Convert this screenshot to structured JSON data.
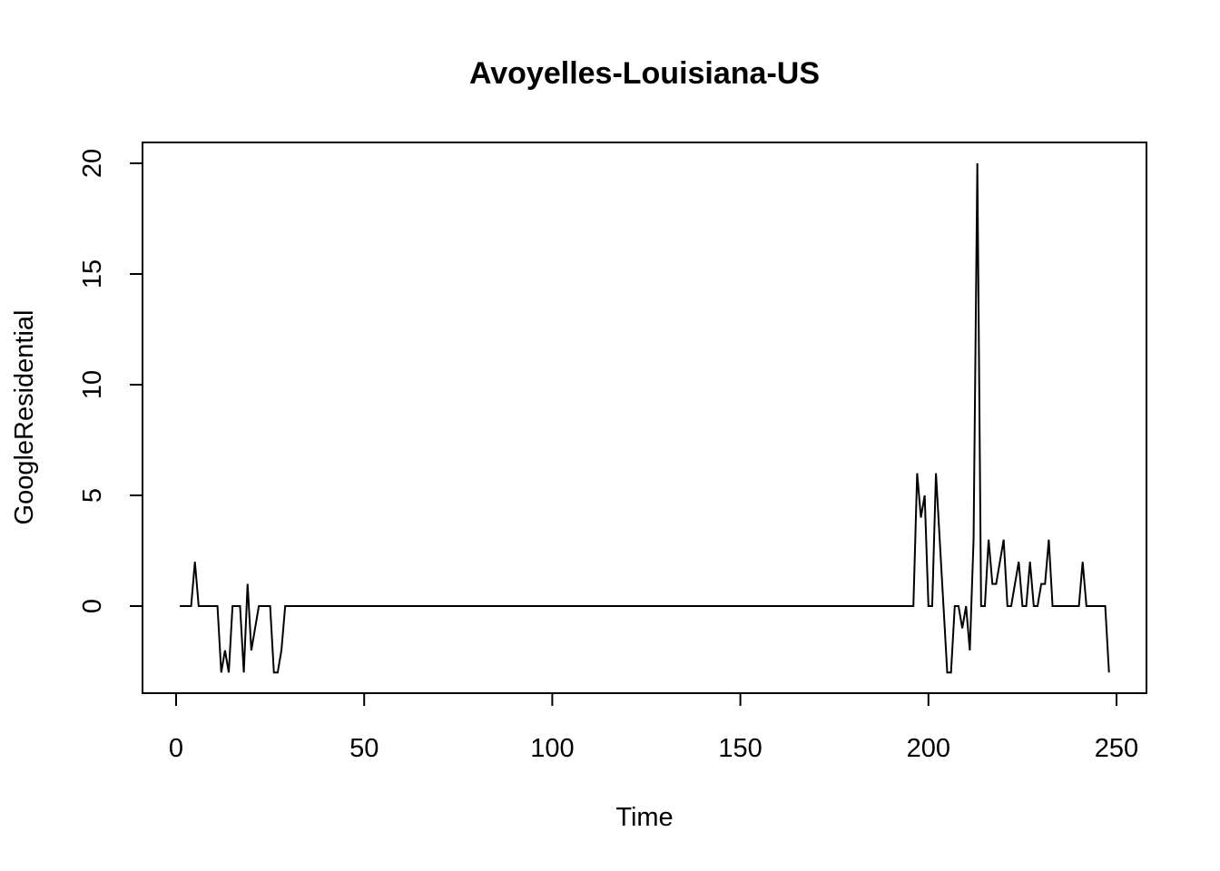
{
  "chart_data": {
    "type": "line",
    "title": "Avoyelles-Louisiana-US",
    "xlabel": "Time",
    "ylabel": "GoogleResidential",
    "xlim": [
      0,
      250
    ],
    "ylim": [
      -3,
      20
    ],
    "x_ticks": [
      0,
      50,
      100,
      150,
      200,
      250
    ],
    "y_ticks": [
      0,
      5,
      10,
      15,
      20
    ],
    "grid": false,
    "series": [
      {
        "color": "#000000",
        "points": [
          [
            1,
            0
          ],
          [
            2,
            0
          ],
          [
            3,
            0
          ],
          [
            4,
            0
          ],
          [
            5,
            2
          ],
          [
            6,
            0
          ],
          [
            7,
            0
          ],
          [
            8,
            0
          ],
          [
            9,
            0
          ],
          [
            10,
            0
          ],
          [
            11,
            0
          ],
          [
            12,
            -3
          ],
          [
            13,
            -2
          ],
          [
            14,
            -3
          ],
          [
            15,
            0
          ],
          [
            16,
            0
          ],
          [
            17,
            0
          ],
          [
            18,
            -3
          ],
          [
            19,
            1
          ],
          [
            20,
            -2
          ],
          [
            21,
            -1
          ],
          [
            22,
            0
          ],
          [
            23,
            0
          ],
          [
            24,
            0
          ],
          [
            25,
            0
          ],
          [
            26,
            -3
          ],
          [
            27,
            -3
          ],
          [
            28,
            -2
          ],
          [
            29,
            0
          ],
          [
            30,
            0
          ],
          [
            40,
            0
          ],
          [
            60,
            0
          ],
          [
            80,
            0
          ],
          [
            100,
            0
          ],
          [
            120,
            0
          ],
          [
            140,
            0
          ],
          [
            160,
            0
          ],
          [
            180,
            0
          ],
          [
            196,
            0
          ],
          [
            197,
            6
          ],
          [
            198,
            4
          ],
          [
            199,
            5
          ],
          [
            200,
            0
          ],
          [
            201,
            0
          ],
          [
            202,
            6
          ],
          [
            203,
            3
          ],
          [
            204,
            0
          ],
          [
            205,
            -3
          ],
          [
            206,
            -3
          ],
          [
            207,
            0
          ],
          [
            208,
            0
          ],
          [
            209,
            -1
          ],
          [
            210,
            0
          ],
          [
            211,
            -2
          ],
          [
            212,
            3
          ],
          [
            213,
            20
          ],
          [
            214,
            0
          ],
          [
            215,
            0
          ],
          [
            216,
            3
          ],
          [
            217,
            1
          ],
          [
            218,
            1
          ],
          [
            219,
            2
          ],
          [
            220,
            3
          ],
          [
            221,
            0
          ],
          [
            222,
            0
          ],
          [
            223,
            1
          ],
          [
            224,
            2
          ],
          [
            225,
            0
          ],
          [
            226,
            0
          ],
          [
            227,
            2
          ],
          [
            228,
            0
          ],
          [
            229,
            0
          ],
          [
            230,
            1
          ],
          [
            231,
            1
          ],
          [
            232,
            3
          ],
          [
            233,
            0
          ],
          [
            234,
            0
          ],
          [
            235,
            0
          ],
          [
            236,
            0
          ],
          [
            237,
            0
          ],
          [
            238,
            0
          ],
          [
            239,
            0
          ],
          [
            240,
            0
          ],
          [
            241,
            2
          ],
          [
            242,
            0
          ],
          [
            243,
            0
          ],
          [
            244,
            0
          ],
          [
            245,
            0
          ],
          [
            246,
            0
          ],
          [
            247,
            0
          ],
          [
            248,
            -3
          ]
        ]
      }
    ]
  }
}
